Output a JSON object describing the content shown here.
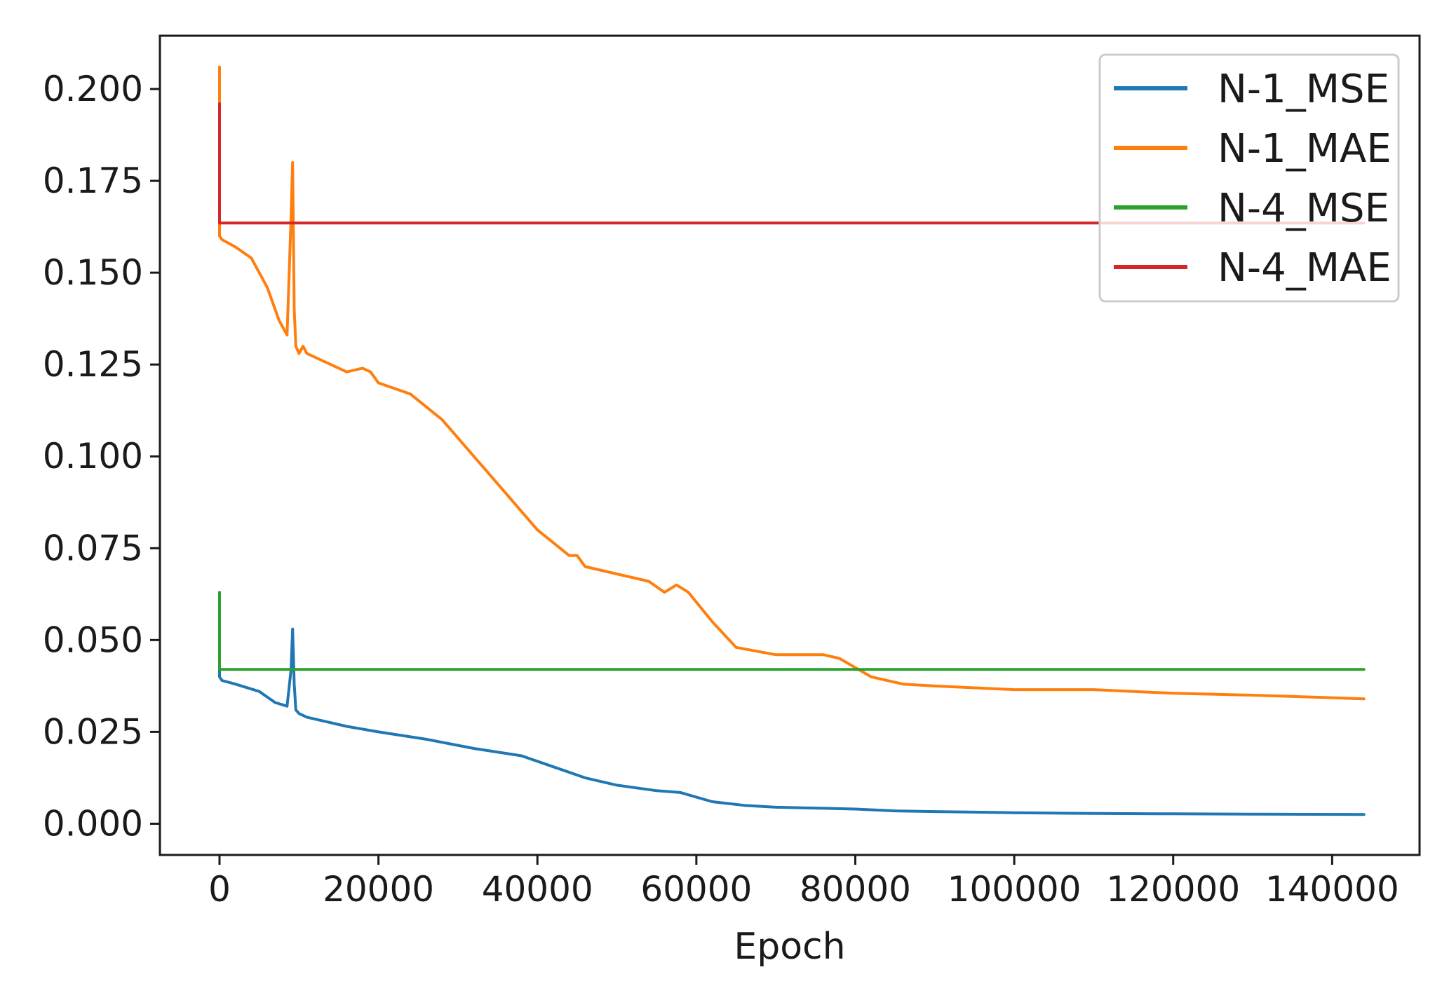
{
  "chart_data": {
    "type": "line",
    "title": "",
    "xlabel": "Epoch",
    "ylabel": "",
    "xlim": [
      -7500,
      151000
    ],
    "ylim": [
      -0.0085,
      0.2145
    ],
    "x_ticks": [
      0,
      20000,
      40000,
      60000,
      80000,
      100000,
      120000,
      140000
    ],
    "x_tick_labels": [
      "0",
      "20000",
      "40000",
      "60000",
      "80000",
      "100000",
      "120000",
      "140000"
    ],
    "y_ticks": [
      0.0,
      0.025,
      0.05,
      0.075,
      0.1,
      0.125,
      0.15,
      0.175,
      0.2
    ],
    "y_tick_labels": [
      "0.000",
      "0.025",
      "0.050",
      "0.075",
      "0.100",
      "0.125",
      "0.150",
      "0.175",
      "0.200"
    ],
    "grid": false,
    "legend_position": "top-right",
    "series": [
      {
        "name": "N-1_MSE",
        "color": "#1f77b4",
        "x": [
          0,
          0,
          300,
          2000,
          5000,
          7000,
          8500,
          9000,
          9200,
          9400,
          9600,
          10000,
          11000,
          13000,
          16000,
          20000,
          26000,
          32000,
          38000,
          42000,
          46000,
          50000,
          55000,
          58000,
          62000,
          66000,
          70000,
          76000,
          80000,
          85000,
          90000,
          100000,
          110000,
          120000,
          130000,
          144000
        ],
        "y": [
          0.062,
          0.04,
          0.039,
          0.038,
          0.036,
          0.033,
          0.032,
          0.042,
          0.053,
          0.038,
          0.031,
          0.03,
          0.029,
          0.028,
          0.0265,
          0.025,
          0.023,
          0.0205,
          0.0185,
          0.0155,
          0.0125,
          0.0105,
          0.009,
          0.0085,
          0.006,
          0.005,
          0.0045,
          0.0042,
          0.004,
          0.0035,
          0.0033,
          0.003,
          0.0028,
          0.0027,
          0.0026,
          0.0025
        ]
      },
      {
        "name": "N-1_MAE",
        "color": "#ff7f0e",
        "x": [
          0,
          0,
          300,
          2000,
          4000,
          6000,
          7500,
          8500,
          9000,
          9200,
          9400,
          9600,
          10000,
          10500,
          11000,
          12000,
          14000,
          16000,
          18000,
          19000,
          20000,
          24000,
          28000,
          32000,
          36000,
          40000,
          44000,
          45000,
          46000,
          50000,
          54000,
          56000,
          57500,
          59000,
          62000,
          65000,
          70000,
          76000,
          78000,
          82000,
          86000,
          90000,
          100000,
          110000,
          120000,
          130000,
          144000
        ],
        "y": [
          0.206,
          0.16,
          0.159,
          0.157,
          0.154,
          0.146,
          0.137,
          0.133,
          0.165,
          0.18,
          0.14,
          0.13,
          0.128,
          0.13,
          0.128,
          0.127,
          0.125,
          0.123,
          0.124,
          0.123,
          0.12,
          0.117,
          0.11,
          0.1,
          0.09,
          0.08,
          0.073,
          0.073,
          0.07,
          0.068,
          0.066,
          0.063,
          0.065,
          0.063,
          0.055,
          0.048,
          0.046,
          0.046,
          0.045,
          0.04,
          0.038,
          0.0375,
          0.0365,
          0.0365,
          0.0355,
          0.035,
          0.034
        ]
      },
      {
        "name": "N-4_MSE",
        "color": "#2ca02c",
        "x": [
          0,
          0,
          300,
          144000
        ],
        "y": [
          0.063,
          0.042,
          0.042,
          0.042
        ]
      },
      {
        "name": "N-4_MAE",
        "color": "#d62728",
        "x": [
          0,
          0,
          300,
          144000
        ],
        "y": [
          0.196,
          0.1635,
          0.1635,
          0.1635
        ]
      }
    ]
  }
}
